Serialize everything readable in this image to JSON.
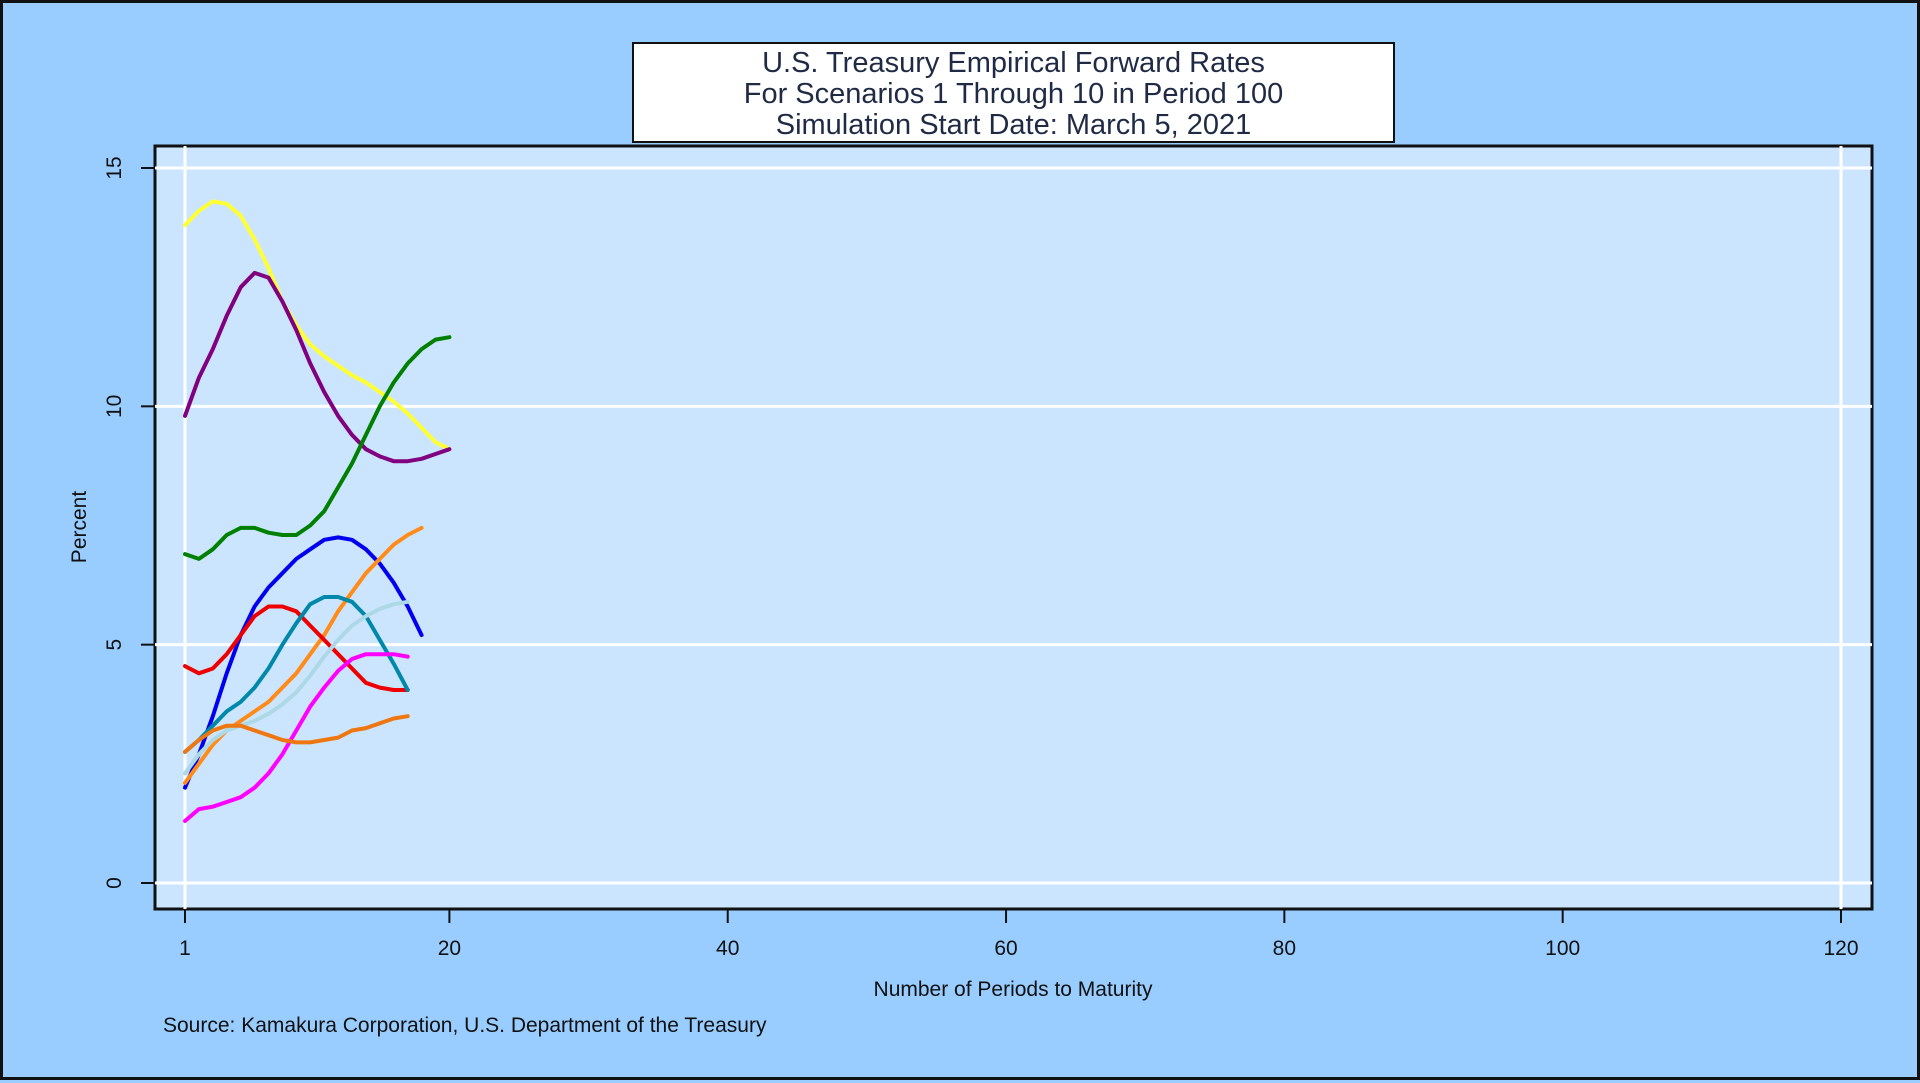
{
  "chart_data": {
    "type": "line",
    "title": [
      "U.S. Treasury Empirical Forward Rates",
      "For Scenarios 1 Through 10 in Period 100",
      "Simulation Start Date: March 5, 2021"
    ],
    "xlabel": "Number of Periods to Maturity",
    "ylabel": "Percent",
    "source": "Source: Kamakura Corporation, U.S. Department of the Treasury",
    "xlim": [
      1,
      120
    ],
    "ylim": [
      0,
      15
    ],
    "xticks": [
      1,
      20,
      40,
      60,
      80,
      100,
      120
    ],
    "yticks": [
      0,
      5,
      10,
      15
    ],
    "grid": true,
    "colors": {
      "page_background": "#99ccff",
      "plot_background": "#cce5ff",
      "grid": "#ffffff"
    },
    "x": [
      1,
      2,
      3,
      4,
      5,
      6,
      7,
      8,
      9,
      10,
      11,
      12,
      13,
      14,
      15,
      16,
      17,
      18,
      19,
      20
    ],
    "series": [
      {
        "color": "#ffff33",
        "values": [
          13.8,
          14.1,
          14.3,
          14.25,
          14.0,
          13.5,
          12.9,
          12.2,
          11.7,
          11.3,
          11.05,
          10.85,
          10.65,
          10.5,
          10.3,
          10.1,
          9.85,
          9.55,
          9.25,
          9.1
        ]
      },
      {
        "color": "#800080",
        "values": [
          9.8,
          10.6,
          11.2,
          11.9,
          12.5,
          12.8,
          12.7,
          12.2,
          11.6,
          10.9,
          10.3,
          9.8,
          9.4,
          9.1,
          8.95,
          8.85,
          8.85,
          8.9,
          9.0,
          9.1
        ]
      },
      {
        "color": "#008000",
        "values": [
          6.9,
          6.8,
          7.0,
          7.3,
          7.45,
          7.45,
          7.35,
          7.3,
          7.3,
          7.5,
          7.8,
          8.3,
          8.8,
          9.4,
          10.0,
          10.5,
          10.9,
          11.2,
          11.4,
          11.45
        ]
      },
      {
        "color": "#0000ee",
        "values": [
          2.0,
          2.7,
          3.5,
          4.4,
          5.2,
          5.8,
          6.2,
          6.5,
          6.8,
          7.0,
          7.2,
          7.25,
          7.2,
          7.0,
          6.7,
          6.3,
          5.8,
          5.2,
          null,
          null
        ]
      },
      {
        "color": "#ff8c1a",
        "values": [
          2.1,
          2.5,
          2.9,
          3.2,
          3.4,
          3.6,
          3.8,
          4.1,
          4.4,
          4.8,
          5.2,
          5.7,
          6.1,
          6.5,
          6.8,
          7.1,
          7.3,
          7.45,
          null,
          null
        ]
      },
      {
        "color": "#ee0000",
        "values": [
          4.55,
          4.4,
          4.5,
          4.8,
          5.2,
          5.6,
          5.8,
          5.8,
          5.7,
          5.4,
          5.1,
          4.8,
          4.5,
          4.2,
          4.1,
          4.05,
          4.05,
          null,
          null,
          null
        ]
      },
      {
        "color": "#0088aa",
        "values": [
          2.75,
          3.0,
          3.3,
          3.6,
          3.8,
          4.1,
          4.5,
          5.0,
          5.45,
          5.85,
          6.0,
          6.0,
          5.9,
          5.6,
          5.1,
          4.6,
          4.05,
          null,
          null,
          null
        ]
      },
      {
        "color": "#add8e6",
        "values": [
          2.3,
          2.7,
          3.0,
          3.2,
          3.3,
          3.4,
          3.55,
          3.75,
          4.0,
          4.35,
          4.75,
          5.1,
          5.4,
          5.6,
          5.75,
          5.85,
          5.9,
          null,
          null,
          null
        ]
      },
      {
        "color": "#ff00ff",
        "values": [
          1.3,
          1.55,
          1.6,
          1.7,
          1.8,
          2.0,
          2.3,
          2.7,
          3.2,
          3.7,
          4.1,
          4.45,
          4.7,
          4.8,
          4.8,
          4.8,
          4.75,
          null,
          null,
          null
        ]
      },
      {
        "color": "#ee7711",
        "values": [
          2.75,
          3.0,
          3.2,
          3.3,
          3.3,
          3.2,
          3.1,
          3.0,
          2.95,
          2.95,
          3.0,
          3.05,
          3.2,
          3.25,
          3.35,
          3.45,
          3.5,
          null,
          null,
          null
        ]
      }
    ]
  }
}
